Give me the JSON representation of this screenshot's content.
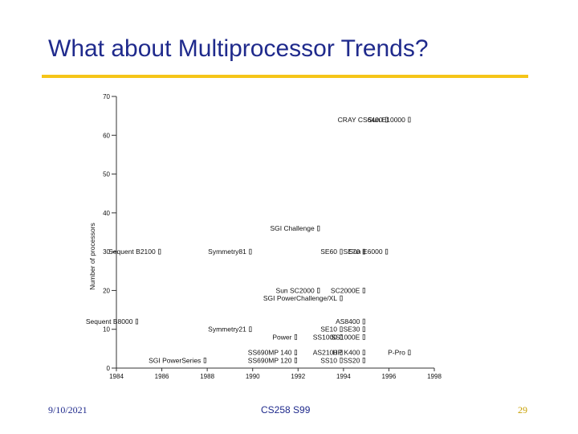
{
  "slide": {
    "title": "What about Multiprocessor Trends?",
    "date": "9/10/2021",
    "course": "CS258 S99",
    "page": "29",
    "accent_color": "#f5c518",
    "title_color": "#1f2a8c"
  },
  "chart_data": {
    "type": "scatter",
    "title": "",
    "xlabel": "",
    "ylabel": "Number of processors",
    "xlim": [
      1984,
      1998
    ],
    "ylim": [
      0,
      70
    ],
    "xticks": [
      1984,
      1986,
      1988,
      1990,
      1992,
      1994,
      1996,
      1998
    ],
    "yticks": [
      0,
      10,
      20,
      30,
      40,
      50,
      60,
      70
    ],
    "grid": false,
    "points": [
      {
        "x": 1995.9,
        "y": 64,
        "label": "CRAY CS6400"
      },
      {
        "x": 1996.9,
        "y": 64,
        "label": "Sun E10000"
      },
      {
        "x": 1992.9,
        "y": 36,
        "label": "SGI Challenge"
      },
      {
        "x": 1985.9,
        "y": 30,
        "label": "Sequent B2100"
      },
      {
        "x": 1989.9,
        "y": 30,
        "label": "Symmetry81"
      },
      {
        "x": 1993.9,
        "y": 30,
        "label": "SE60"
      },
      {
        "x": 1994.9,
        "y": 30,
        "label": "SE70"
      },
      {
        "x": 1995.9,
        "y": 30,
        "label": "Sun E6000"
      },
      {
        "x": 1992.9,
        "y": 20,
        "label": "Sun SC2000"
      },
      {
        "x": 1994.9,
        "y": 20,
        "label": "SC2000E"
      },
      {
        "x": 1993.9,
        "y": 18,
        "label": "SGI PowerChallenge/XL"
      },
      {
        "x": 1984.9,
        "y": 12,
        "label": "Sequent B8000"
      },
      {
        "x": 1989.9,
        "y": 10,
        "label": "Symmetry21"
      },
      {
        "x": 1994.9,
        "y": 12,
        "label": "AS8400"
      },
      {
        "x": 1993.9,
        "y": 10,
        "label": "SE10"
      },
      {
        "x": 1994.9,
        "y": 10,
        "label": "SE30"
      },
      {
        "x": 1991.9,
        "y": 8,
        "label": "Power"
      },
      {
        "x": 1993.9,
        "y": 8,
        "label": "SS1000"
      },
      {
        "x": 1994.9,
        "y": 8,
        "label": "SS1000E"
      },
      {
        "x": 1991.9,
        "y": 4,
        "label": "SS690MP 140"
      },
      {
        "x": 1993.9,
        "y": 4,
        "label": "AS2100"
      },
      {
        "x": 1994.9,
        "y": 4,
        "label": "HP K400"
      },
      {
        "x": 1996.9,
        "y": 4,
        "label": "P-Pro"
      },
      {
        "x": 1987.9,
        "y": 2,
        "label": "SGI PowerSeries"
      },
      {
        "x": 1991.9,
        "y": 2,
        "label": "SS690MP 120"
      },
      {
        "x": 1993.9,
        "y": 2,
        "label": "SS10"
      },
      {
        "x": 1994.9,
        "y": 2,
        "label": "SS20"
      }
    ]
  }
}
